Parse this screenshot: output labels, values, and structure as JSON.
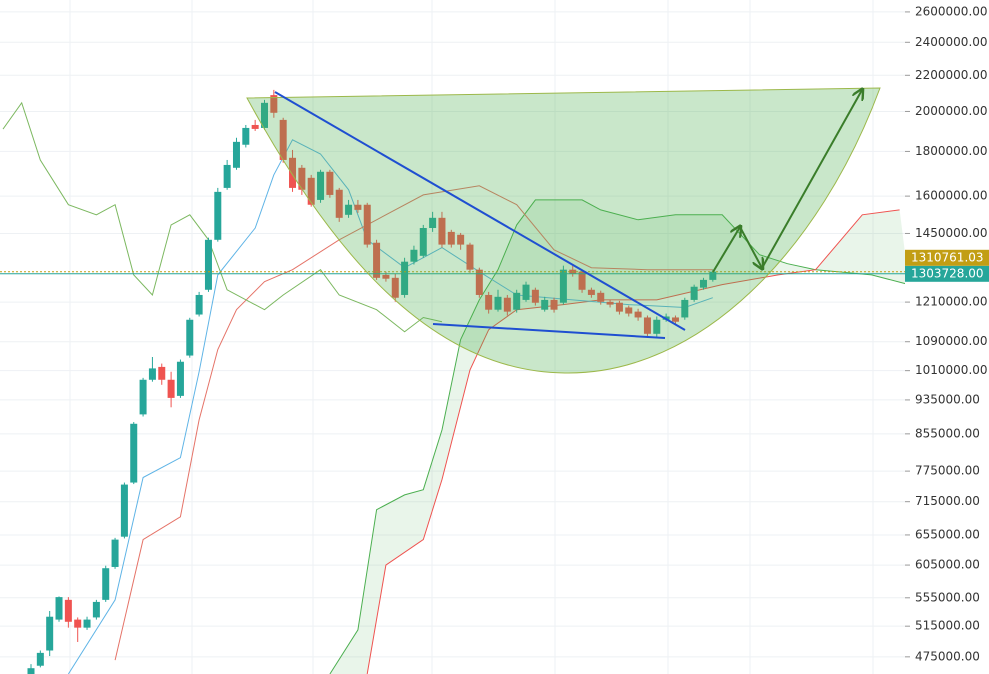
{
  "chart_data": {
    "type": "candlestick",
    "log_scale": true,
    "grid": true,
    "up_color": "#26a69a",
    "down_color": "#ef5350",
    "ylim": [
      454000,
      2683000
    ],
    "yticks": [
      {
        "value": 2600000,
        "label": "2600000.00"
      },
      {
        "value": 2400000,
        "label": "2400000.00"
      },
      {
        "value": 2200000,
        "label": "2200000.00"
      },
      {
        "value": 2000000,
        "label": "2000000.00"
      },
      {
        "value": 1800000,
        "label": "1800000.00"
      },
      {
        "value": 1600000,
        "label": "1600000.00"
      },
      {
        "value": 1450000,
        "label": "1450000.00"
      },
      {
        "value": 1210000,
        "label": "1210000.00"
      },
      {
        "value": 1090000,
        "label": "1090000.00"
      },
      {
        "value": 1010000,
        "label": "1010000.00"
      },
      {
        "value": 935000,
        "label": "935000.00"
      },
      {
        "value": 855000,
        "label": "855000.00"
      },
      {
        "value": 775000,
        "label": "775000.00"
      },
      {
        "value": 715000,
        "label": "715000.00"
      },
      {
        "value": 655000,
        "label": "655000.00"
      },
      {
        "value": 605000,
        "label": "605000.00"
      },
      {
        "value": 555000,
        "label": "555000.00"
      },
      {
        "value": 515000,
        "label": "515000.00"
      },
      {
        "value": 475000,
        "label": "475000.00"
      }
    ],
    "price_lines": [
      {
        "value": 1310761.03,
        "label": "1310761.03",
        "color": "#c29e14"
      },
      {
        "value": 1303728,
        "label": "1303728.00",
        "color": "#26a69a"
      }
    ],
    "candles": {
      "open": [
        454000,
        464000,
        483000,
        524000,
        552000,
        524000,
        513000,
        527000,
        552000,
        602000,
        652000,
        752000,
        900000,
        986000,
        1020000,
        986000,
        945000,
        1051000,
        1171000,
        1250000,
        1426000,
        1635000,
        1724000,
        1832000,
        1930000,
        1915000,
        2088000,
        1956000,
        1770000,
        1724000,
        1679000,
        1584000,
        1706000,
        1627000,
        1523000,
        1564000,
        1564000,
        1415000,
        1300000,
        1290000,
        1233000,
        1346000,
        1367000,
        1471000,
        1511000,
        1456000,
        1445000,
        1408000,
        1318000,
        1233000,
        1186000,
        1224000,
        1186000,
        1217000,
        1250000,
        1186000,
        1217000,
        1208000,
        1318000,
        1311000,
        1250000,
        1240000,
        1211000,
        1208000,
        1193000,
        1180000,
        1162000,
        1113000,
        1155000,
        1162000,
        1162000,
        1217000,
        1257000,
        1283000
      ],
      "high": [
        466000,
        483000,
        536000,
        557000,
        556000,
        527000,
        528000,
        552000,
        604000,
        650000,
        752000,
        882000,
        991000,
        1047000,
        1029000,
        1007000,
        1040000,
        1161000,
        1243000,
        1434000,
        1635000,
        1760000,
        1866000,
        1930000,
        1956000,
        2062000,
        2117000,
        1967000,
        1807000,
        1737000,
        1692000,
        1715000,
        1715000,
        1635000,
        1584000,
        1584000,
        1572000,
        1426000,
        1311000,
        1304000,
        1360000,
        1404000,
        1483000,
        1535000,
        1535000,
        1464000,
        1452000,
        1415000,
        1325000,
        1243000,
        1250000,
        1233000,
        1250000,
        1277000,
        1257000,
        1227000,
        1224000,
        1332000,
        1332000,
        1318000,
        1257000,
        1247000,
        1217000,
        1214000,
        1199000,
        1189000,
        1168000,
        1165000,
        1174000,
        1168000,
        1224000,
        1267000,
        1290000,
        1318000
      ],
      "low": [
        454000,
        462000,
        476000,
        521000,
        513000,
        494000,
        510000,
        524000,
        549000,
        599000,
        649000,
        749000,
        895000,
        981000,
        973000,
        917000,
        940000,
        1045000,
        1165000,
        1243000,
        1419000,
        1627000,
        1715000,
        1819000,
        1900000,
        1905000,
        1967000,
        1747000,
        1618000,
        1605000,
        1556000,
        1572000,
        1593000,
        1495000,
        1511000,
        1531000,
        1397000,
        1283000,
        1277000,
        1211000,
        1224000,
        1336000,
        1360000,
        1456000,
        1397000,
        1397000,
        1389000,
        1307000,
        1224000,
        1174000,
        1180000,
        1168000,
        1177000,
        1211000,
        1199000,
        1180000,
        1177000,
        1202000,
        1294000,
        1240000,
        1224000,
        1202000,
        1193000,
        1171000,
        1165000,
        1152000,
        1104000,
        1104000,
        1149000,
        1143000,
        1155000,
        1211000,
        1250000,
        1277000
      ],
      "close": [
        461000,
        480000,
        528000,
        556000,
        521000,
        513000,
        524000,
        549000,
        600000,
        647000,
        748000,
        878000,
        986000,
        1016000,
        986000,
        940000,
        1034000,
        1155000,
        1233000,
        1426000,
        1618000,
        1737000,
        1846000,
        1915000,
        1910000,
        2046000,
        1993000,
        1760000,
        1635000,
        1627000,
        1564000,
        1706000,
        1605000,
        1511000,
        1564000,
        1543000,
        1408000,
        1290000,
        1287000,
        1224000,
        1346000,
        1389000,
        1471000,
        1511000,
        1408000,
        1408000,
        1408000,
        1318000,
        1233000,
        1186000,
        1227000,
        1180000,
        1240000,
        1267000,
        1208000,
        1217000,
        1186000,
        1318000,
        1304000,
        1250000,
        1233000,
        1211000,
        1202000,
        1180000,
        1174000,
        1162000,
        1113000,
        1155000,
        1165000,
        1149000,
        1217000,
        1260000,
        1283000,
        1311000
      ]
    },
    "lines": [
      {
        "color": "#5fb4e6",
        "x": [
          4,
          9,
          12,
          16,
          18,
          20,
          24,
          26,
          28,
          31,
          34,
          36,
          40,
          44,
          48,
          52,
          58,
          64,
          70,
          73
        ],
        "values": [
          454000,
          552000,
          762000,
          803000,
          1007000,
          1300000,
          1471000,
          1692000,
          1856000,
          1788000,
          1627000,
          1426000,
          1325000,
          1397000,
          1311000,
          1233000,
          1217000,
          1202000,
          1193000,
          1224000
        ]
      },
      {
        "color": "#e57368",
        "x": [
          9,
          12,
          16,
          18,
          20,
          22,
          25,
          28,
          33,
          38,
          42,
          48,
          52,
          56,
          60,
          66,
          73
        ],
        "values": [
          471000,
          647000,
          687000,
          887000,
          1068000,
          1186000,
          1277000,
          1318000,
          1426000,
          1523000,
          1605000,
          1644000,
          1564000,
          1389000,
          1325000,
          1318000,
          1318000
        ]
      },
      {
        "color": "#7cb860",
        "x": [
          -3,
          -1,
          1,
          4,
          7,
          9,
          11,
          13,
          14,
          15,
          17,
          19,
          21,
          25,
          27,
          31,
          33,
          37,
          40,
          42,
          44
        ],
        "values": [
          1909000,
          2046000,
          1760000,
          1564000,
          1523000,
          1564000,
          1300000,
          1233000,
          1353000,
          1483000,
          1523000,
          1426000,
          1250000,
          1186000,
          1233000,
          1318000,
          1233000,
          1186000,
          1119000,
          1162000,
          1149000
        ]
      }
    ],
    "cloud": {
      "fill": "#4caf50",
      "span_a": {
        "color": "#4caf50",
        "x": [
          32,
          35,
          37,
          40,
          42,
          44,
          46,
          48,
          50,
          52,
          54,
          59,
          61,
          65,
          69,
          74,
          78,
          81,
          84,
          90,
          94
        ],
        "values": [
          454000,
          510000,
          700000,
          728000,
          738000,
          864000,
          1096000,
          1217000,
          1318000,
          1483000,
          1584000,
          1584000,
          1543000,
          1503000,
          1523000,
          1523000,
          1371000,
          1339000,
          1318000,
          1300000,
          1267000
        ]
      },
      "span_b": {
        "color": "#ef5350",
        "x": [
          36,
          38,
          42,
          44,
          47,
          49,
          52,
          57,
          61,
          67,
          74,
          80,
          84,
          89,
          93
        ],
        "values": [
          454000,
          605000,
          647000,
          758000,
          1012000,
          1125000,
          1186000,
          1202000,
          1217000,
          1217000,
          1267000,
          1300000,
          1318000,
          1523000,
          1543000
        ]
      }
    }
  }
}
